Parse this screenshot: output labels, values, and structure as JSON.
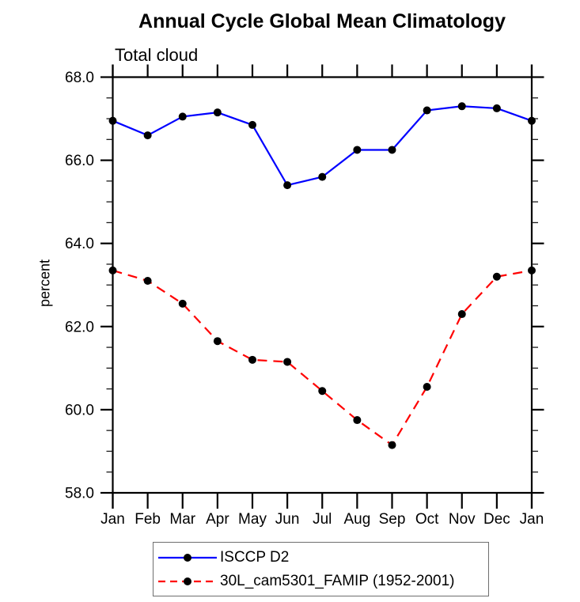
{
  "chart_data": {
    "type": "line",
    "title": "Annual Cycle Global Mean Climatology",
    "subtitle": "Total cloud",
    "ylabel": "percent",
    "xlabel": "",
    "categories": [
      "Jan",
      "Feb",
      "Mar",
      "Apr",
      "May",
      "Jun",
      "Jul",
      "Aug",
      "Sep",
      "Oct",
      "Nov",
      "Dec",
      "Jan"
    ],
    "ylim": [
      58.0,
      68.0
    ],
    "ytick_major_values": [
      58.0,
      60.0,
      62.0,
      64.0,
      66.0,
      68.0
    ],
    "ytick_major_labels": [
      "58.0",
      "60.0",
      "62.0",
      "64.0",
      "66.0",
      "68.0"
    ],
    "ytick_minor_step": 0.5,
    "grid": false,
    "legend_position": "bottom-center-boxed",
    "axis_color": "#000000",
    "marker_color": "#000000",
    "series": [
      {
        "name": "ISCCP D2",
        "color": "#0000ff",
        "line_style": "solid",
        "marker": "filled-circle",
        "values": [
          66.95,
          66.6,
          67.05,
          67.15,
          66.85,
          65.4,
          65.6,
          66.25,
          66.25,
          67.2,
          67.3,
          67.25,
          66.95
        ]
      },
      {
        "name": "30L_cam5301_FAMIP (1952-2001)",
        "color": "#ff0000",
        "line_style": "dashed",
        "marker": "filled-circle",
        "values": [
          63.35,
          63.1,
          62.55,
          61.65,
          61.2,
          61.15,
          60.45,
          59.75,
          59.15,
          60.55,
          62.3,
          63.2,
          63.35
        ]
      }
    ]
  }
}
